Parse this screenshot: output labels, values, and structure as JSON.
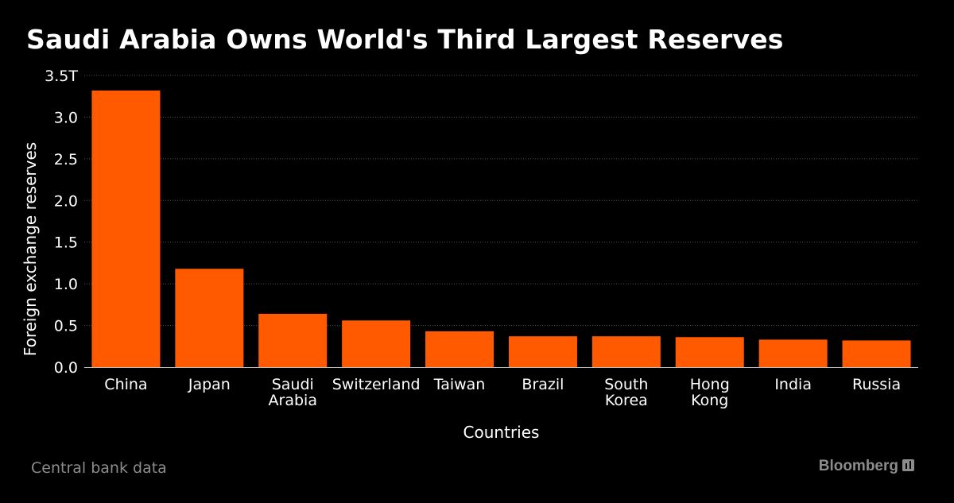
{
  "header": {
    "title": "Saudi Arabia Owns World's Third Largest Reserves"
  },
  "footer": {
    "source": "Central bank data",
    "brand": "Bloomberg"
  },
  "colors": {
    "bar": "#ff5a00",
    "background": "#000000",
    "grid": "#555555",
    "text": "#ffffff",
    "muted": "#8c8c8c"
  },
  "chart_data": {
    "type": "bar",
    "title": "Saudi Arabia Owns World's Third Largest Reserves",
    "xlabel": "Countries",
    "ylabel": "Foreign exchange reserves",
    "ylim": [
      0,
      3.5
    ],
    "y_ticks": [
      0,
      0.5,
      1.0,
      1.5,
      2.0,
      2.5,
      3.0,
      3.5
    ],
    "y_tick_labels": [
      "0.0",
      "0.5",
      "1.0",
      "1.5",
      "2.0",
      "2.5",
      "3.0",
      "3.5T"
    ],
    "grid": true,
    "categories": [
      [
        "China"
      ],
      [
        "Japan"
      ],
      [
        "Saudi",
        "Arabia"
      ],
      [
        "Switzerland"
      ],
      [
        "Taiwan"
      ],
      [
        "Brazil"
      ],
      [
        "South",
        "Korea"
      ],
      [
        "Hong",
        "Kong"
      ],
      [
        "India"
      ],
      [
        "Russia"
      ]
    ],
    "values": [
      3.32,
      1.18,
      0.64,
      0.56,
      0.43,
      0.37,
      0.37,
      0.36,
      0.33,
      0.32
    ]
  }
}
